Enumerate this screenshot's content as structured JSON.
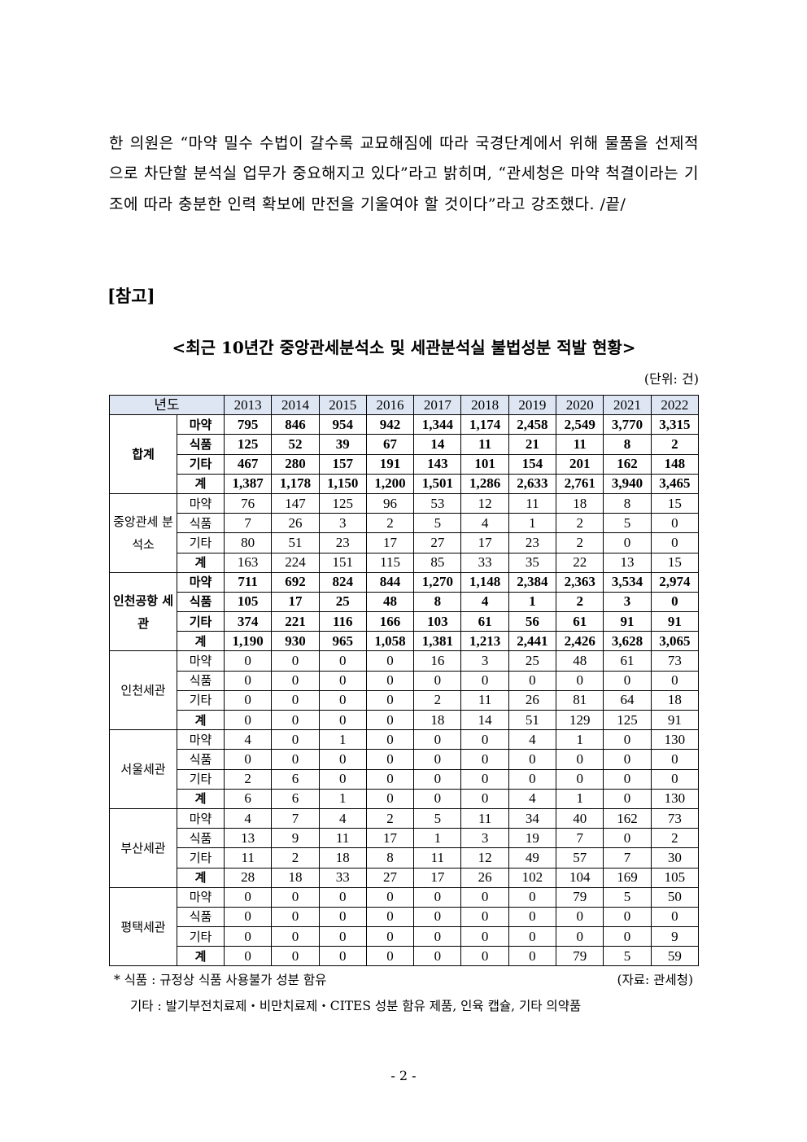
{
  "paragraph": [
    "한 의원은 “마약 밀수 수법이 갈수록 교묘해짐에 따라 국경단계에서 위해 물품을 선제적으로 차단할 분석실 업무가 중요해지고 있다”라고 밝히며, “관세청은 마약 척결이라는 기조에 따라 충분한 인력 확보에 만전을 기울여야 할 것이다”라고 강조했다. /끝/"
  ],
  "reference_label": "[참고]",
  "table_title": "<최근 10년간 중앙관세분석소 및 세관분석실 불법성분 적발 현황>",
  "unit": "(단위: 건)",
  "table": {
    "header_label": "년도",
    "years": [
      "2013",
      "2014",
      "2015",
      "2016",
      "2017",
      "2018",
      "2019",
      "2020",
      "2021",
      "2022"
    ],
    "groups": [
      {
        "name": "합계",
        "bold": true,
        "rows": [
          {
            "label": "마약",
            "values": [
              "795",
              "846",
              "954",
              "942",
              "1,344",
              "1,174",
              "2,458",
              "2,549",
              "3,770",
              "3,315"
            ]
          },
          {
            "label": "식품",
            "values": [
              "125",
              "52",
              "39",
              "67",
              "14",
              "11",
              "21",
              "11",
              "8",
              "2"
            ]
          },
          {
            "label": "기타",
            "values": [
              "467",
              "280",
              "157",
              "191",
              "143",
              "101",
              "154",
              "201",
              "162",
              "148"
            ]
          },
          {
            "label": "계",
            "values": [
              "1,387",
              "1,178",
              "1,150",
              "1,200",
              "1,501",
              "1,286",
              "2,633",
              "2,761",
              "3,940",
              "3,465"
            ]
          }
        ]
      },
      {
        "name": "중앙관세 분석소",
        "bold": false,
        "rows": [
          {
            "label": "마약",
            "values": [
              "76",
              "147",
              "125",
              "96",
              "53",
              "12",
              "11",
              "18",
              "8",
              "15"
            ]
          },
          {
            "label": "식품",
            "values": [
              "7",
              "26",
              "3",
              "2",
              "5",
              "4",
              "1",
              "2",
              "5",
              "0"
            ]
          },
          {
            "label": "기타",
            "values": [
              "80",
              "51",
              "23",
              "17",
              "27",
              "17",
              "23",
              "2",
              "0",
              "0"
            ]
          },
          {
            "label": "계",
            "values": [
              "163",
              "224",
              "151",
              "115",
              "85",
              "33",
              "35",
              "22",
              "13",
              "15"
            ]
          }
        ]
      },
      {
        "name": "인천공항 세관",
        "bold": true,
        "rows": [
          {
            "label": "마약",
            "values": [
              "711",
              "692",
              "824",
              "844",
              "1,270",
              "1,148",
              "2,384",
              "2,363",
              "3,534",
              "2,974"
            ]
          },
          {
            "label": "식품",
            "values": [
              "105",
              "17",
              "25",
              "48",
              "8",
              "4",
              "1",
              "2",
              "3",
              "0"
            ]
          },
          {
            "label": "기타",
            "values": [
              "374",
              "221",
              "116",
              "166",
              "103",
              "61",
              "56",
              "61",
              "91",
              "91"
            ]
          },
          {
            "label": "계",
            "values": [
              "1,190",
              "930",
              "965",
              "1,058",
              "1,381",
              "1,213",
              "2,441",
              "2,426",
              "3,628",
              "3,065"
            ]
          }
        ]
      },
      {
        "name": "인천세관",
        "bold": false,
        "rows": [
          {
            "label": "마약",
            "values": [
              "0",
              "0",
              "0",
              "0",
              "16",
              "3",
              "25",
              "48",
              "61",
              "73"
            ]
          },
          {
            "label": "식품",
            "values": [
              "0",
              "0",
              "0",
              "0",
              "0",
              "0",
              "0",
              "0",
              "0",
              "0"
            ]
          },
          {
            "label": "기타",
            "values": [
              "0",
              "0",
              "0",
              "0",
              "2",
              "11",
              "26",
              "81",
              "64",
              "18"
            ]
          },
          {
            "label": "계",
            "values": [
              "0",
              "0",
              "0",
              "0",
              "18",
              "14",
              "51",
              "129",
              "125",
              "91"
            ]
          }
        ]
      },
      {
        "name": "서울세관",
        "bold": false,
        "rows": [
          {
            "label": "마약",
            "values": [
              "4",
              "0",
              "1",
              "0",
              "0",
              "0",
              "4",
              "1",
              "0",
              "130"
            ]
          },
          {
            "label": "식품",
            "values": [
              "0",
              "0",
              "0",
              "0",
              "0",
              "0",
              "0",
              "0",
              "0",
              "0"
            ]
          },
          {
            "label": "기타",
            "values": [
              "2",
              "6",
              "0",
              "0",
              "0",
              "0",
              "0",
              "0",
              "0",
              "0"
            ]
          },
          {
            "label": "계",
            "values": [
              "6",
              "6",
              "1",
              "0",
              "0",
              "0",
              "4",
              "1",
              "0",
              "130"
            ]
          }
        ]
      },
      {
        "name": "부산세관",
        "bold": false,
        "rows": [
          {
            "label": "마약",
            "values": [
              "4",
              "7",
              "4",
              "2",
              "5",
              "11",
              "34",
              "40",
              "162",
              "73"
            ]
          },
          {
            "label": "식품",
            "values": [
              "13",
              "9",
              "11",
              "17",
              "1",
              "3",
              "19",
              "7",
              "0",
              "2"
            ]
          },
          {
            "label": "기타",
            "values": [
              "11",
              "2",
              "18",
              "8",
              "11",
              "12",
              "49",
              "57",
              "7",
              "30"
            ]
          },
          {
            "label": "계",
            "values": [
              "28",
              "18",
              "33",
              "27",
              "17",
              "26",
              "102",
              "104",
              "169",
              "105"
            ]
          }
        ]
      },
      {
        "name": "평택세관",
        "bold": false,
        "rows": [
          {
            "label": "마약",
            "values": [
              "0",
              "0",
              "0",
              "0",
              "0",
              "0",
              "0",
              "79",
              "5",
              "50"
            ]
          },
          {
            "label": "식품",
            "values": [
              "0",
              "0",
              "0",
              "0",
              "0",
              "0",
              "0",
              "0",
              "0",
              "0"
            ]
          },
          {
            "label": "기타",
            "values": [
              "0",
              "0",
              "0",
              "0",
              "0",
              "0",
              "0",
              "0",
              "0",
              "9"
            ]
          },
          {
            "label": "계",
            "values": [
              "0",
              "0",
              "0",
              "0",
              "0",
              "0",
              "0",
              "79",
              "5",
              "59"
            ]
          }
        ]
      }
    ]
  },
  "notes": {
    "food": "* 식품 : 규정상 식품 사용불가 성분 함유",
    "other": "기타 : 발기부전치료제・비만치료제・CITES 성분 함유 제품, 인육 캡슐, 기타 의약품",
    "source": "(자료: 관세청)"
  },
  "page_number": "- 2 -",
  "colors": {
    "header_bg": "#dfe6f3"
  }
}
